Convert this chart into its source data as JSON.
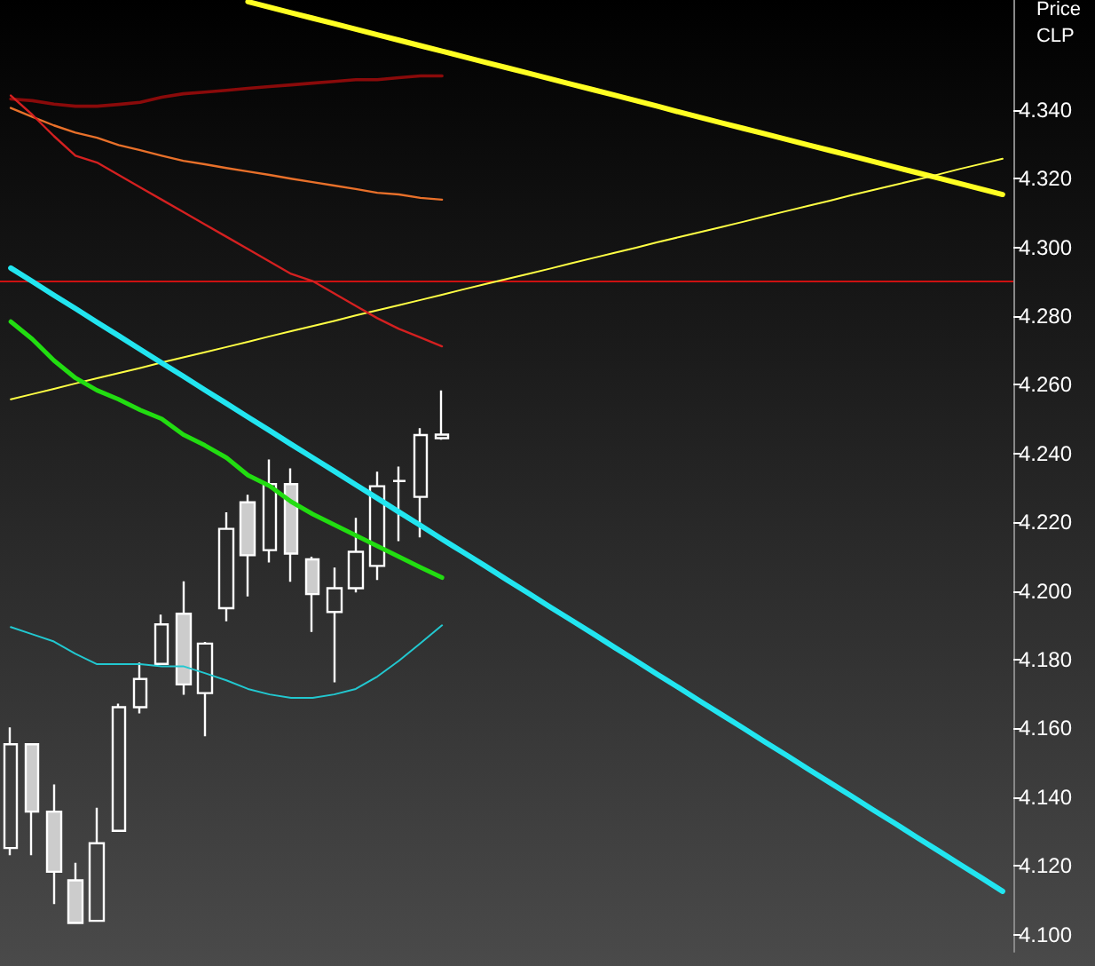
{
  "chart_data": {
    "type": "candlestick",
    "ylabel": "Price CLP",
    "categories": [
      null,
      null,
      null,
      null,
      null,
      null,
      null,
      null,
      null,
      null,
      null,
      null,
      null,
      null,
      null,
      null,
      null,
      null,
      null,
      null,
      null,
      null,
      null,
      null,
      null,
      null,
      null,
      null,
      null,
      null,
      null,
      null,
      null,
      null,
      null,
      null,
      null,
      null,
      null,
      null,
      null,
      null,
      null,
      null,
      null,
      null,
      null
    ],
    "ylim": [
      4.095,
      4.372
    ],
    "yticks": [
      {
        "value": 4.1,
        "label": "4.100"
      },
      {
        "value": 4.12,
        "label": "4.120"
      },
      {
        "value": 4.14,
        "label": "4.140"
      },
      {
        "value": 4.16,
        "label": "4.160"
      },
      {
        "value": 4.18,
        "label": "4.180"
      },
      {
        "value": 4.2,
        "label": "4.200"
      },
      {
        "value": 4.22,
        "label": "4.220"
      },
      {
        "value": 4.24,
        "label": "4.240"
      },
      {
        "value": 4.26,
        "label": "4.260"
      },
      {
        "value": 4.28,
        "label": "4.280"
      },
      {
        "value": 4.3,
        "label": "4.300"
      },
      {
        "value": 4.32,
        "label": "4.320"
      },
      {
        "value": 4.34,
        "label": "4.340"
      }
    ],
    "grid": false,
    "marker": "none",
    "ref_lines": [
      {
        "axis": "y",
        "value": 4.29,
        "color": "#cc1111"
      }
    ],
    "series": [
      {
        "color": "#ffffff",
        "ohlc": [
          [
            4.1252,
            4.1603,
            4.1231,
            4.1554
          ],
          [
            4.1554,
            4.1554,
            4.1231,
            4.1358
          ],
          [
            4.1358,
            4.1437,
            4.1089,
            4.1183
          ],
          [
            4.1158,
            4.1209,
            4.1034,
            4.1034
          ],
          [
            4.104,
            4.1369,
            4.104,
            4.1266
          ],
          [
            4.1302,
            4.1672,
            4.1302,
            4.1662
          ],
          [
            4.1662,
            4.1792,
            4.1644,
            4.1744
          ],
          [
            4.1788,
            4.1931,
            4.1788,
            4.1903
          ],
          [
            4.1934,
            4.2028,
            4.1698,
            4.1728
          ],
          [
            4.1703,
            4.1852,
            4.1577,
            4.1847
          ],
          [
            4.195,
            4.2229,
            4.1912,
            4.2181
          ],
          [
            4.2258,
            4.228,
            4.1984,
            4.2104
          ],
          [
            4.2119,
            4.2383,
            4.2083,
            4.2311
          ],
          [
            4.2311,
            4.2357,
            4.2027,
            4.2109
          ],
          [
            4.2092,
            4.21,
            4.1881,
            4.1991
          ],
          [
            4.1939,
            4.2068,
            4.1734,
            4.2008
          ],
          [
            4.2008,
            4.2213,
            4.1996,
            4.2114
          ],
          [
            4.2073,
            4.2347,
            4.2032,
            4.2305
          ],
          [
            4.232,
            4.2362,
            4.2145,
            4.232
          ],
          [
            4.2274,
            4.2474,
            4.2156,
            4.2454
          ],
          [
            4.2445,
            4.2584,
            4.244,
            4.2455
          ],
          null,
          null,
          null,
          null,
          null,
          null,
          null,
          null,
          null,
          null,
          null,
          null,
          null,
          null,
          null,
          null,
          null,
          null,
          null,
          null,
          null,
          null,
          null,
          null,
          null,
          null
        ]
      },
      {
        "type": "line",
        "color": "#ffff22",
        "values": [
          null,
          null,
          null,
          null,
          null,
          null,
          null,
          null,
          null,
          null,
          null,
          4.3715,
          4.3699,
          4.3683,
          4.3667,
          4.3651,
          4.3635,
          4.3619,
          4.3603,
          4.3587,
          4.3571,
          4.3555,
          4.3539,
          4.3523,
          4.3507,
          4.3491,
          4.3475,
          4.3459,
          4.3443,
          4.3427,
          4.3411,
          4.3394,
          4.3378,
          4.3362,
          4.3346,
          4.333,
          4.3314,
          4.3298,
          4.3282,
          4.3266,
          4.325,
          4.3234,
          4.3218,
          4.3202,
          4.3186,
          4.317,
          4.3154
        ]
      },
      {
        "type": "line",
        "color": "#ffff44",
        "values": [
          4.2558,
          4.2573,
          4.2588,
          4.2604,
          4.2619,
          4.2634,
          4.2649,
          4.2665,
          4.268,
          4.2695,
          4.271,
          4.2725,
          4.2741,
          4.2756,
          4.2771,
          4.2786,
          4.2802,
          4.2817,
          4.2832,
          4.2847,
          4.2862,
          4.2878,
          4.2893,
          4.2908,
          4.2923,
          4.2938,
          4.2954,
          4.2969,
          4.2984,
          4.2999,
          4.3015,
          4.303,
          4.3045,
          4.306,
          4.3075,
          4.3091,
          4.3106,
          4.3121,
          4.3136,
          4.3152,
          4.3167,
          4.3182,
          4.3197,
          4.3212,
          4.3228,
          4.3243,
          4.3258
        ]
      },
      {
        "type": "line",
        "color": "#22e5f0",
        "values": [
          4.294,
          4.2901,
          4.2861,
          4.2822,
          4.2782,
          4.2743,
          4.2703,
          4.2664,
          4.2625,
          4.2585,
          4.2546,
          4.2506,
          4.2467,
          4.2427,
          4.2388,
          4.2349,
          4.2309,
          4.227,
          4.223,
          4.2191,
          4.2151,
          4.2112,
          4.2073,
          4.2033,
          4.1994,
          4.1954,
          4.1915,
          4.1876,
          4.1836,
          4.1797,
          4.1757,
          4.1718,
          4.1678,
          4.1639,
          4.16,
          4.156,
          4.1521,
          4.1481,
          4.1442,
          4.1403,
          4.1363,
          4.1324,
          4.1284,
          4.1245,
          4.1205,
          4.1166,
          4.1126
        ]
      },
      {
        "type": "line",
        "color": "#22dd11",
        "values": [
          4.2784,
          4.2733,
          4.2671,
          4.262,
          4.2584,
          4.2558,
          4.2527,
          4.2501,
          4.2455,
          4.2424,
          4.2388,
          4.2337,
          4.2306,
          4.226,
          4.2224,
          4.2193,
          4.2162,
          4.2131,
          4.21,
          4.2069,
          4.2039,
          null,
          null,
          null,
          null,
          null,
          null,
          null,
          null,
          null,
          null,
          null,
          null,
          null,
          null,
          null,
          null,
          null,
          null,
          null,
          null,
          null,
          null,
          null,
          null,
          null,
          null
        ]
      },
      {
        "type": "line",
        "color": "#22c8d0",
        "values": [
          4.1895,
          4.1874,
          4.1853,
          4.1817,
          4.1787,
          4.1787,
          4.1787,
          4.1781,
          4.1781,
          4.1761,
          4.174,
          4.1715,
          4.1699,
          4.1689,
          4.1689,
          4.1699,
          4.1715,
          4.1751,
          4.1797,
          4.1848,
          4.19,
          null,
          null,
          null,
          null,
          null,
          null,
          null,
          null,
          null,
          null,
          null,
          null,
          null,
          null,
          null,
          null,
          null,
          null,
          null,
          null,
          null,
          null,
          null,
          null,
          null,
          null
        ]
      },
      {
        "type": "line",
        "color": "#8a0a0a",
        "values": [
          4.3432,
          4.3427,
          4.3417,
          4.3411,
          4.3411,
          4.3416,
          4.3422,
          4.3437,
          4.3447,
          4.3452,
          4.3457,
          4.3463,
          4.3468,
          4.3473,
          4.3478,
          4.3483,
          4.3488,
          4.3488,
          4.3494,
          4.3499,
          4.3499,
          null,
          null,
          null,
          null,
          null,
          null,
          null,
          null,
          null,
          null,
          null,
          null,
          null,
          null,
          null,
          null,
          null,
          null,
          null,
          null,
          null,
          null,
          null,
          null,
          null,
          null
        ]
      },
      {
        "type": "line",
        "color": "#e8702a",
        "values": [
          4.3406,
          4.338,
          4.3355,
          4.3334,
          4.3319,
          4.3298,
          4.3283,
          4.3267,
          4.3252,
          4.3242,
          4.3231,
          4.3221,
          4.3211,
          4.32,
          4.319,
          4.318,
          4.317,
          4.3159,
          4.3154,
          4.3144,
          4.3139,
          null,
          null,
          null,
          null,
          null,
          null,
          null,
          null,
          null,
          null,
          null,
          null,
          null,
          null,
          null,
          null,
          null,
          null,
          null,
          null,
          null,
          null,
          null,
          null,
          null,
          null
        ]
      },
      {
        "type": "line",
        "color": "#d42020",
        "values": [
          4.3442,
          4.3386,
          4.3324,
          4.3267,
          4.3247,
          4.3211,
          4.3175,
          4.3139,
          4.3103,
          4.3067,
          4.3031,
          4.2995,
          4.2959,
          4.2923,
          4.2902,
          4.2866,
          4.283,
          4.2794,
          4.2763,
          4.2738,
          4.2712,
          null,
          null,
          null,
          null,
          null,
          null,
          null,
          null,
          null,
          null,
          null,
          null,
          null,
          null,
          null,
          null,
          null,
          null,
          null,
          null,
          null,
          null,
          null,
          null,
          null,
          null
        ]
      }
    ]
  }
}
